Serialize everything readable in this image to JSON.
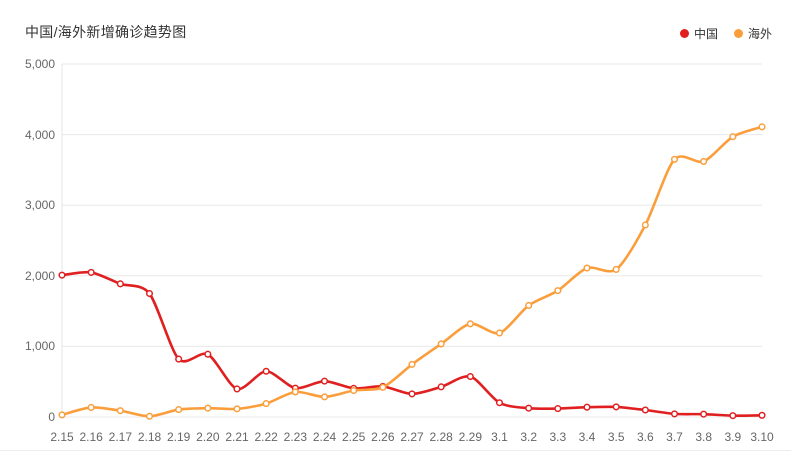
{
  "chart_data": {
    "type": "line",
    "title": "中国/海外新增确诊趋势图",
    "xlabel": "",
    "ylabel": "",
    "ylim": [
      0,
      5000
    ],
    "y_ticks": [
      "0",
      "1,000",
      "2,000",
      "3,000",
      "4,000",
      "5,000"
    ],
    "grid": true,
    "smooth": true,
    "marker": "hollow-circle",
    "legend_position": "top-right",
    "categories": [
      "2.15",
      "2.16",
      "2.17",
      "2.18",
      "2.19",
      "2.20",
      "2.21",
      "2.22",
      "2.23",
      "2.24",
      "2.25",
      "2.26",
      "2.27",
      "2.28",
      "2.29",
      "3.1",
      "3.2",
      "3.3",
      "3.4",
      "3.5",
      "3.6",
      "3.7",
      "3.8",
      "3.9",
      "3.10"
    ],
    "series": [
      {
        "name": "中国",
        "color": "#e02020",
        "values": [
          2009,
          2048,
          1886,
          1749,
          820,
          889,
          397,
          648,
          409,
          508,
          406,
          433,
          327,
          427,
          573,
          202,
          125,
          119,
          139,
          143,
          99,
          44,
          40,
          19,
          24
        ]
      },
      {
        "name": "海外",
        "color": "#fa9e3c",
        "values": [
          30,
          135,
          90,
          10,
          105,
          125,
          115,
          190,
          355,
          285,
          375,
          420,
          745,
          1035,
          1320,
          1190,
          1580,
          1790,
          2110,
          2090,
          2720,
          3650,
          3620,
          3970,
          4110
        ]
      }
    ]
  },
  "colors": {
    "china": "#e02020",
    "overseas": "#fa9e3c",
    "gridline": "#e8e8e8",
    "axis_line": "#e4e4e4",
    "tick_text": "#666666",
    "title_text": "#333333",
    "divider": "#ececec"
  }
}
